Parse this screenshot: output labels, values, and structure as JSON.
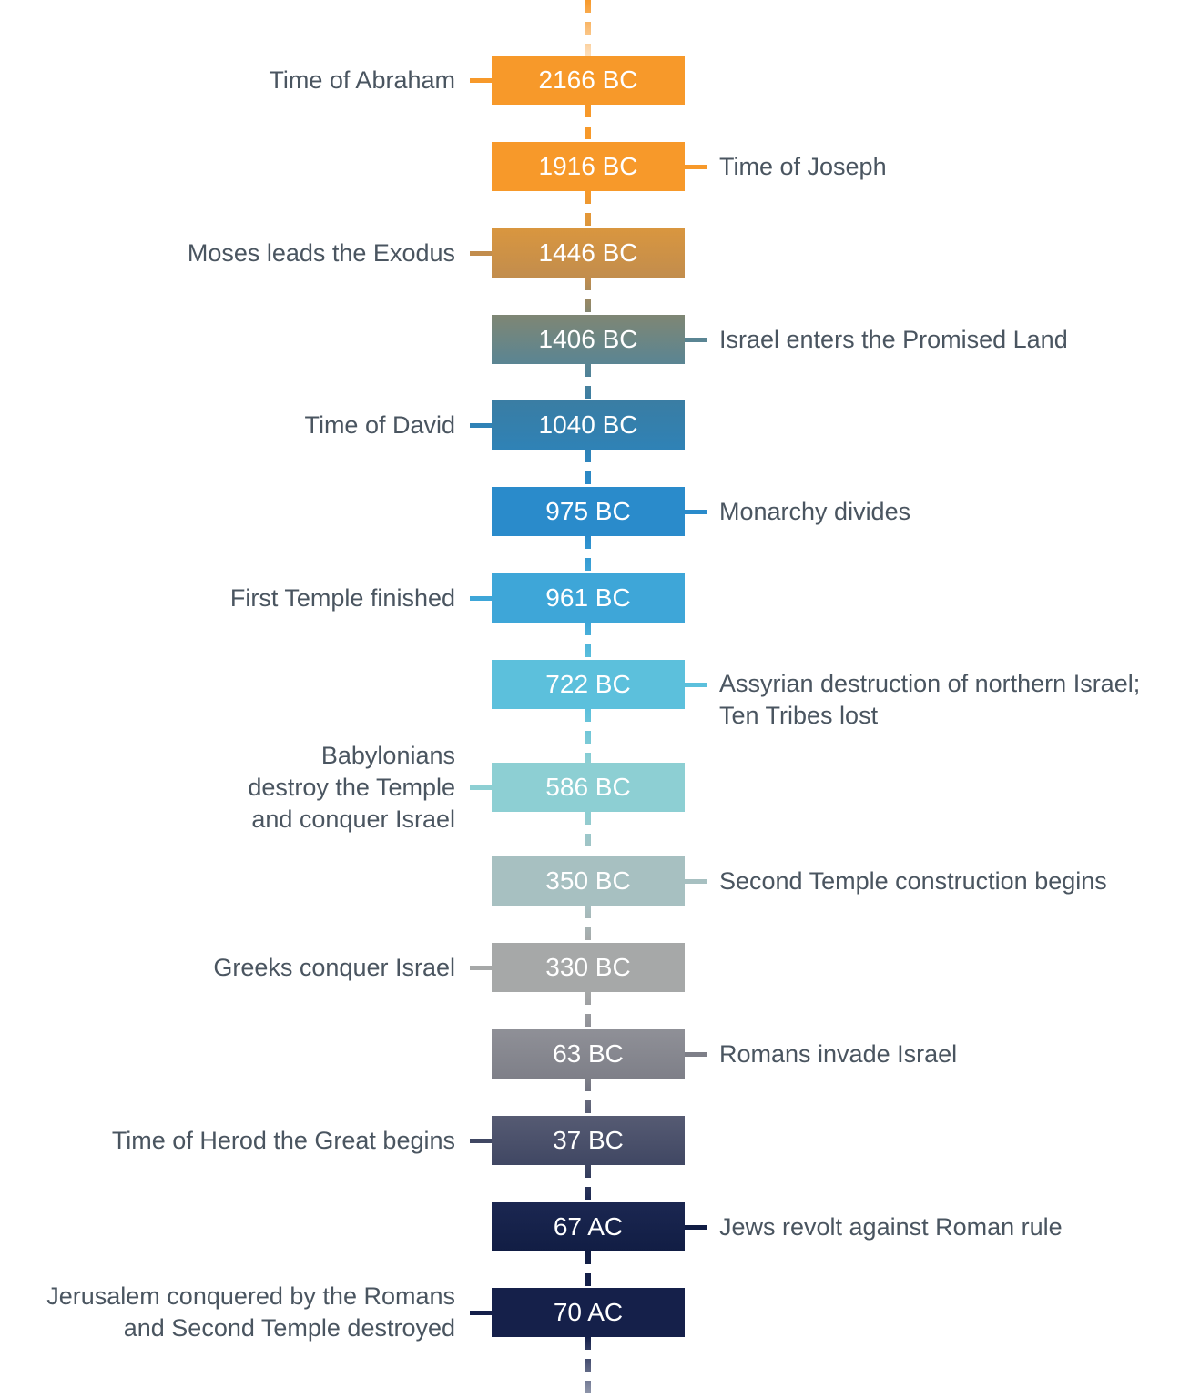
{
  "events": [
    {
      "date": "2166 BC",
      "label": "Time of Abraham",
      "side": "left",
      "colors": [
        "#f7992a",
        "#f7992a"
      ]
    },
    {
      "date": "1916 BC",
      "label": "Time of Joseph",
      "side": "right",
      "colors": [
        "#f7992a",
        "#f7992a"
      ]
    },
    {
      "date": "1446 BC",
      "label": "Moses leads the Exodus",
      "side": "left",
      "colors": [
        "#d9963f",
        "#c28d4d"
      ]
    },
    {
      "date": "1406 BC",
      "label": "Israel enters the Promised Land",
      "side": "right",
      "colors": [
        "#7f8674",
        "#5a8593"
      ]
    },
    {
      "date": "1040 BC",
      "label": "Time of David",
      "side": "left",
      "colors": [
        "#3a7da3",
        "#2f82b6"
      ]
    },
    {
      "date": "975 BC",
      "label": "Monarchy divides",
      "side": "right",
      "colors": [
        "#2a8bcb",
        "#2a8bcb"
      ]
    },
    {
      "date": "961 BC",
      "label": "First Temple finished",
      "side": "left",
      "colors": [
        "#3ea6d8",
        "#3ea6d8"
      ]
    },
    {
      "date": "722 BC",
      "label": "Assyrian destruction of northern Israel;\nTen Tribes lost",
      "side": "right",
      "colors": [
        "#5cc0dc",
        "#5cc0dc"
      ]
    },
    {
      "date": "586 BC",
      "label": "Babylonians\ndestroy the Temple\nand conquer Israel",
      "side": "left",
      "colors": [
        "#8dcfd3",
        "#8dcfd3"
      ]
    },
    {
      "date": "350 BC",
      "label": "Second Temple construction begins",
      "side": "right",
      "colors": [
        "#a7c0c1",
        "#a7c0c1"
      ]
    },
    {
      "date": "330 BC",
      "label": "Greeks conquer Israel",
      "side": "left",
      "colors": [
        "#a6a8a8",
        "#a6a8a8"
      ]
    },
    {
      "date": "63 BC",
      "label": "Romans invade Israel",
      "side": "right",
      "colors": [
        "#8f9097",
        "#7e7f88"
      ]
    },
    {
      "date": "37 BC",
      "label": "Time of Herod the Great begins",
      "side": "left",
      "colors": [
        "#565b73",
        "#404763"
      ]
    },
    {
      "date": "67 AC",
      "label": "Jews revolt against Roman rule",
      "side": "right",
      "colors": [
        "#1b2751",
        "#111d44"
      ]
    },
    {
      "date": "70 AC",
      "label": "Jerusalem conquered by the Romans\nand Second Temple destroyed",
      "side": "left",
      "colors": [
        "#15204a",
        "#15204a"
      ]
    }
  ]
}
